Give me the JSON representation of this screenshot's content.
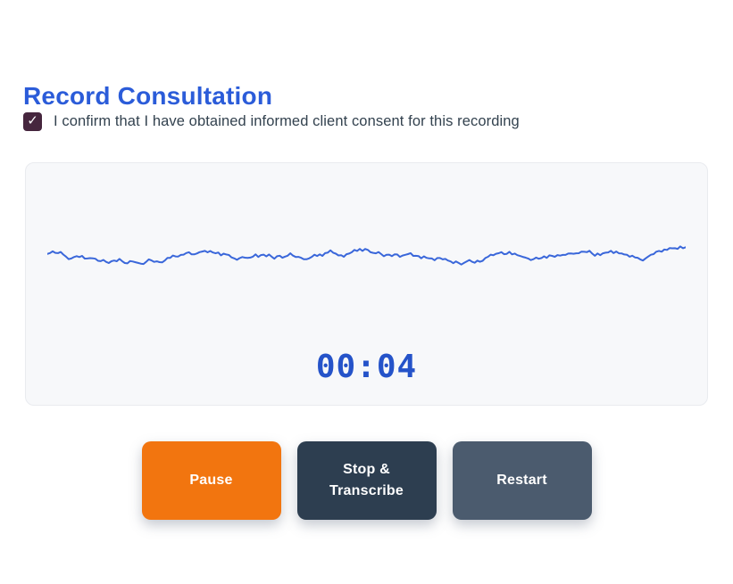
{
  "page": {
    "title": "Record Consultation",
    "accent_color": "#2b5cd9"
  },
  "consent": {
    "label": "I confirm that I have obtained informed client consent for this recording",
    "checked": true,
    "check_icon": "✓",
    "checkbox_color": "#46263e",
    "label_color": "#33424f"
  },
  "recorder": {
    "timer": "00:04",
    "timer_color": "#2553c9",
    "panel_bg": "#f7f8fa",
    "panel_border": "#e9ebef",
    "waveform": {
      "color": "#3a67da",
      "seed": 11,
      "points": 240,
      "amplitude": 13,
      "stroke_width": 2
    }
  },
  "buttons": [
    {
      "id": "pause",
      "label": "Pause",
      "bg": "#f2750f"
    },
    {
      "id": "stop-transcribe",
      "label": "Stop & Transcribe",
      "bg": "#2d3e50"
    },
    {
      "id": "restart",
      "label": "Restart",
      "bg": "#4b5b6e"
    }
  ]
}
